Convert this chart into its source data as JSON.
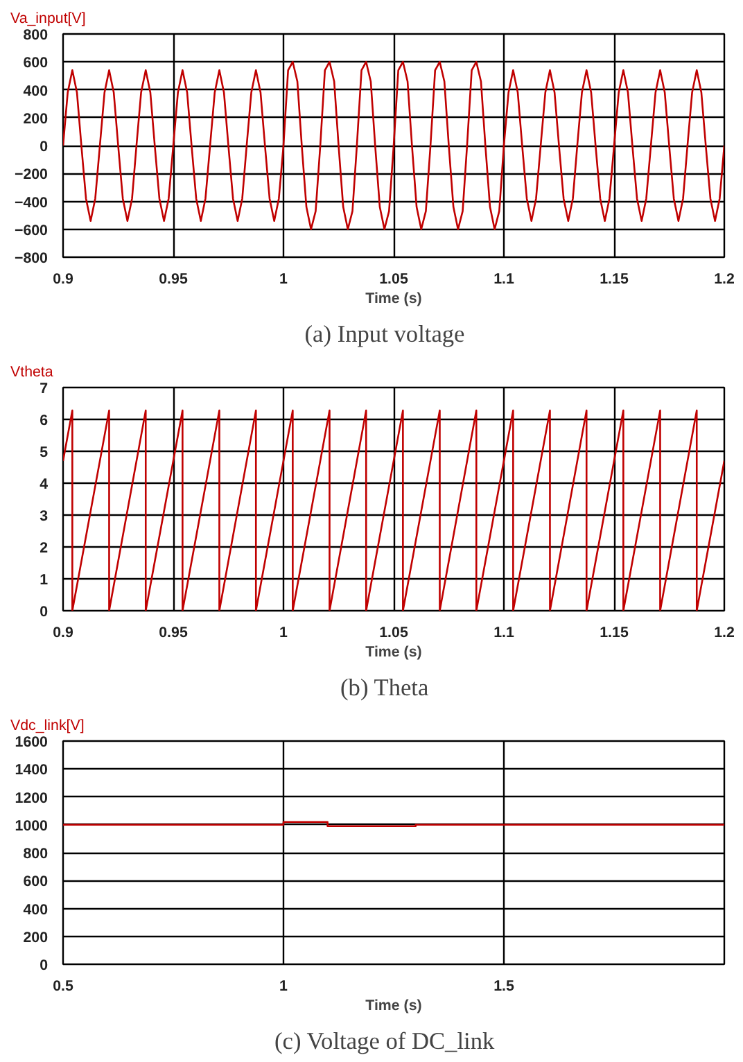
{
  "chart_data": [
    {
      "type": "line",
      "ylabel": "Va_input[V]",
      "xlabel": "Time (s)",
      "annotations": [
        "(a)    Input voltage"
      ],
      "xlim": [
        0.9,
        1.2
      ],
      "ylim": [
        -800,
        800
      ],
      "xticks": [
        0.9,
        0.95,
        1,
        1.05,
        1.1,
        1.15,
        1.2
      ],
      "yticks": [
        -800,
        -600,
        -400,
        -200,
        0,
        200,
        400,
        600,
        800
      ],
      "grid": true,
      "series": [
        {
          "color": "#c00000",
          "x": [
            0.9,
            0.9021,
            0.9042,
            0.9063,
            0.9083,
            0.9104,
            0.9125,
            0.9146,
            0.9167,
            0.9188,
            0.9209,
            0.923,
            0.925,
            0.9271,
            0.9292,
            0.9313,
            0.9333,
            0.9354,
            0.9375,
            0.9396,
            0.9416,
            0.9437,
            0.9458,
            0.9479,
            0.95,
            0.9521,
            0.9542,
            0.9563,
            0.9583,
            0.9604,
            0.9625,
            0.9646,
            0.9667,
            0.9688,
            0.9709,
            0.973,
            0.975,
            0.9771,
            0.9792,
            0.9813,
            0.9833,
            0.9854,
            0.9875,
            0.9896,
            0.9916,
            0.9937,
            0.9958,
            0.9979,
            1.0,
            1.0021,
            1.0042,
            1.0063,
            1.0083,
            1.0104,
            1.0125,
            1.0146,
            1.0167,
            1.0188,
            1.0209,
            1.023,
            1.025,
            1.0271,
            1.0292,
            1.0313,
            1.0333,
            1.0354,
            1.0375,
            1.0396,
            1.0416,
            1.0437,
            1.0458,
            1.0479,
            1.05,
            1.0521,
            1.0542,
            1.0563,
            1.0583,
            1.0604,
            1.0625,
            1.0646,
            1.0667,
            1.0688,
            1.0709,
            1.073,
            1.075,
            1.0771,
            1.0792,
            1.0813,
            1.0833,
            1.0854,
            1.0875,
            1.0896,
            1.0916,
            1.0937,
            1.0958,
            1.0979,
            1.1,
            1.1021,
            1.1042,
            1.1063,
            1.1083,
            1.1104,
            1.1125,
            1.1146,
            1.1167,
            1.1188,
            1.1209,
            1.123,
            1.125,
            1.1271,
            1.1292,
            1.1313,
            1.1333,
            1.1354,
            1.1375,
            1.1396,
            1.1416,
            1.1437,
            1.1458,
            1.1479,
            1.15,
            1.1521,
            1.1542,
            1.1563,
            1.1583,
            1.1604,
            1.1625,
            1.1646,
            1.1667,
            1.1688,
            1.1709,
            1.173,
            1.175,
            1.1771,
            1.1792,
            1.1813,
            1.1833,
            1.1854,
            1.1875,
            1.1896,
            1.1916,
            1.1937,
            1.1958,
            1.1979,
            1.2
          ],
          "values": [
            0,
            380,
            540,
            380,
            0,
            -380,
            -540,
            -380,
            0,
            380,
            540,
            380,
            0,
            -380,
            -540,
            -380,
            0,
            380,
            540,
            380,
            0,
            -380,
            -540,
            -380,
            0,
            380,
            540,
            380,
            0,
            -380,
            -540,
            -380,
            0,
            380,
            540,
            380,
            0,
            -380,
            -540,
            -380,
            0,
            380,
            540,
            380,
            0,
            -380,
            -540,
            -380,
            0,
            540,
            600,
            460,
            0,
            -440,
            -600,
            -470,
            0,
            540,
            600,
            460,
            0,
            -440,
            -600,
            -470,
            0,
            540,
            600,
            460,
            0,
            -440,
            -600,
            -470,
            0,
            540,
            600,
            460,
            0,
            -440,
            -600,
            -470,
            0,
            540,
            600,
            460,
            0,
            -440,
            -600,
            -470,
            0,
            540,
            600,
            460,
            0,
            -440,
            -600,
            -470,
            0,
            380,
            540,
            380,
            0,
            -380,
            -540,
            -380,
            0,
            380,
            540,
            380,
            0,
            -380,
            -540,
            -380,
            0,
            380,
            540,
            380,
            0,
            -380,
            -540,
            -380,
            0,
            380,
            540,
            380,
            0,
            -380,
            -540,
            -380,
            0,
            380,
            540,
            380,
            0,
            -380,
            -540,
            -380,
            0,
            380,
            540,
            380,
            0,
            -380,
            -540,
            -380,
            0
          ]
        }
      ]
    },
    {
      "type": "line",
      "ylabel": "Vtheta",
      "xlabel": "Time (s)",
      "annotations": [
        "(b)    Theta"
      ],
      "xlim": [
        0.9,
        1.2
      ],
      "ylim": [
        0,
        7
      ],
      "xticks": [
        0.9,
        0.95,
        1,
        1.05,
        1.1,
        1.15,
        1.2
      ],
      "yticks": [
        0,
        1,
        2,
        3,
        4,
        5,
        6,
        7
      ],
      "grid": true,
      "series": [
        {
          "color": "#c00000",
          "x": [
            0.9,
            0.9042,
            0.9042,
            0.9209,
            0.9209,
            0.9375,
            0.9375,
            0.9542,
            0.9542,
            0.9709,
            0.9709,
            0.9875,
            0.9875,
            1.0042,
            1.0042,
            1.0209,
            1.0209,
            1.0375,
            1.0375,
            1.0542,
            1.0542,
            1.0709,
            1.0709,
            1.0875,
            1.0875,
            1.1042,
            1.1042,
            1.1209,
            1.1209,
            1.1375,
            1.1375,
            1.1542,
            1.1542,
            1.1709,
            1.1709,
            1.1875,
            1.1875,
            1.2
          ],
          "values": [
            4.7,
            6.28,
            0,
            6.28,
            0,
            6.28,
            0,
            6.28,
            0,
            6.28,
            0,
            6.28,
            0,
            6.28,
            0,
            6.28,
            0,
            6.28,
            0,
            6.28,
            0,
            6.28,
            0,
            6.28,
            0,
            6.28,
            0,
            6.28,
            0,
            6.28,
            0,
            6.28,
            0,
            6.28,
            0,
            6.28,
            0,
            4.7
          ]
        }
      ]
    },
    {
      "type": "line",
      "ylabel": "Vdc_link[V]",
      "xlabel": "Time (s)",
      "annotations": [
        "(c)    Voltage of DC_link"
      ],
      "xlim": [
        0.5,
        2.0
      ],
      "ylim": [
        0,
        1600
      ],
      "xticks": [
        0.5,
        1,
        1.5
      ],
      "yticks": [
        0,
        200,
        400,
        600,
        800,
        1000,
        1200,
        1400,
        1600
      ],
      "grid": true,
      "series": [
        {
          "color": "#c00000",
          "x": [
            0.5,
            1.0,
            1.0,
            1.1,
            1.1,
            1.3,
            1.3,
            2.0
          ],
          "values": [
            1000,
            1000,
            1020,
            1020,
            990,
            990,
            1000,
            1000
          ]
        }
      ]
    }
  ]
}
